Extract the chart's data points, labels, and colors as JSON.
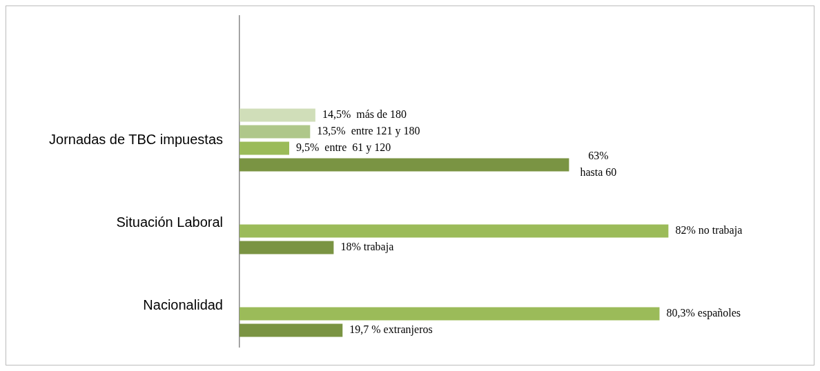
{
  "chart_data": {
    "type": "bar",
    "orientation": "horizontal",
    "categories": [
      null,
      "Jornadas de TBC impuestas",
      "Situación Laboral",
      "Nacionalidad"
    ],
    "series": [
      {
        "color": "#d0deb9",
        "values": [
          null,
          14.5,
          null,
          null
        ],
        "value_labels": [
          null,
          "14,5%  más de 180",
          null,
          null
        ]
      },
      {
        "color": "#afc78a",
        "values": [
          null,
          13.5,
          null,
          null
        ],
        "value_labels": [
          null,
          "13,5%  entre 121 y 180",
          null,
          null
        ]
      },
      {
        "color": "#9bbb59",
        "values": [
          null,
          9.5,
          82,
          80.3
        ],
        "value_labels": [
          null,
          "9,5%  entre  61 y 120",
          "82% no trabaja",
          "80,3% españoles"
        ]
      },
      {
        "color": "#7a9443",
        "values": [
          null,
          63,
          18,
          19.7
        ],
        "value_labels": [
          null,
          "63%\nhasta 60",
          "18% trabaja",
          "19,7 % extranjeros"
        ]
      }
    ],
    "tick_labels": "y",
    "grid": false,
    "legend": false
  }
}
